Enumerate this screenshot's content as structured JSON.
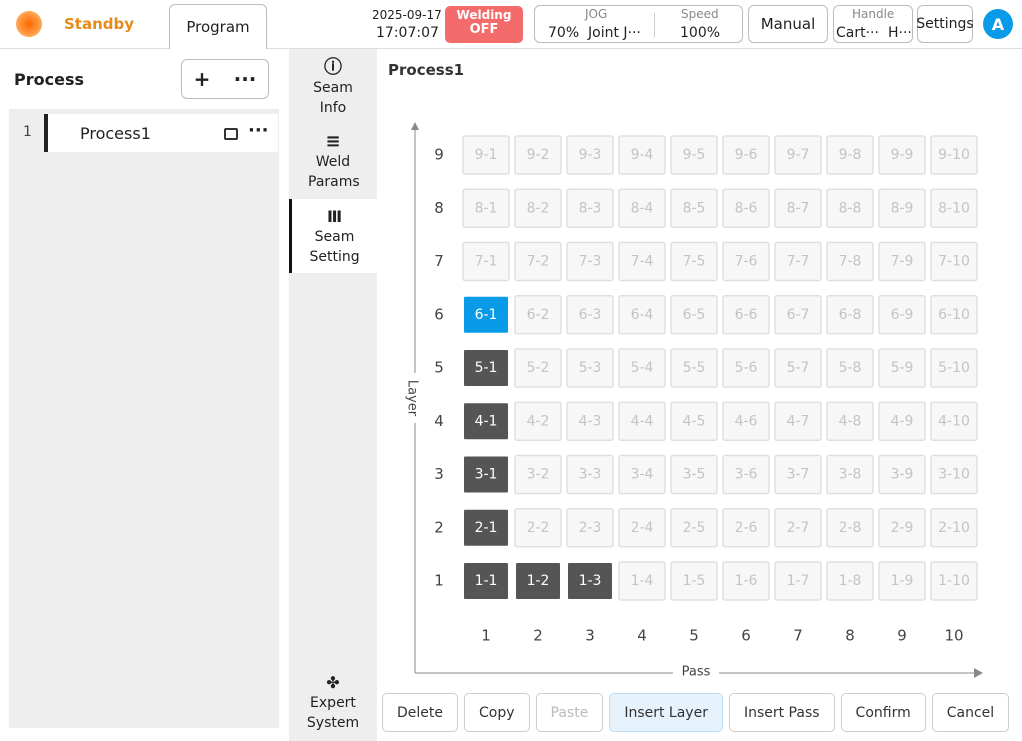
{
  "header": {
    "status": "Standby",
    "tab": "Program",
    "date": "2025-09-17",
    "time": "17:07:07",
    "welding": {
      "label": "Welding",
      "state": "OFF"
    },
    "jog": {
      "label": "JOG",
      "value": "70%",
      "mode": "Joint J···"
    },
    "speed": {
      "label": "Speed",
      "value": "100%"
    },
    "manual": "Manual",
    "handle": {
      "label": "Handle",
      "left": "Cart···",
      "right": "H···"
    },
    "settings": "Settings",
    "avatar": "A"
  },
  "sidebar": {
    "title": "Process",
    "items": [
      {
        "index": "1",
        "name": "Process1"
      }
    ]
  },
  "nav": [
    {
      "label": "Seam Info",
      "active": false
    },
    {
      "label": "Weld Params",
      "active": false
    },
    {
      "label": "Seam Setting",
      "active": true
    },
    {
      "label": "Expert System",
      "active": false
    }
  ],
  "main": {
    "title": "Process1",
    "y_axis": "Layer",
    "x_axis": "Pass",
    "selected": "6-1",
    "rows": [
      {
        "label": "9",
        "filled": 0,
        "cells": [
          "9-1",
          "9-2",
          "9-3",
          "9-4",
          "9-5",
          "9-6",
          "9-7",
          "9-8",
          "9-9",
          "9-10"
        ]
      },
      {
        "label": "8",
        "filled": 0,
        "cells": [
          "8-1",
          "8-2",
          "8-3",
          "8-4",
          "8-5",
          "8-6",
          "8-7",
          "8-8",
          "8-9",
          "8-10"
        ]
      },
      {
        "label": "7",
        "filled": 0,
        "cells": [
          "7-1",
          "7-2",
          "7-3",
          "7-4",
          "7-5",
          "7-6",
          "7-7",
          "7-8",
          "7-9",
          "7-10"
        ]
      },
      {
        "label": "6",
        "filled": 0,
        "cells": [
          "6-1",
          "6-2",
          "6-3",
          "6-4",
          "6-5",
          "6-6",
          "6-7",
          "6-8",
          "6-9",
          "6-10"
        ]
      },
      {
        "label": "5",
        "filled": 1,
        "cells": [
          "5-1",
          "5-2",
          "5-3",
          "5-4",
          "5-5",
          "5-6",
          "5-7",
          "5-8",
          "5-9",
          "5-10"
        ]
      },
      {
        "label": "4",
        "filled": 1,
        "cells": [
          "4-1",
          "4-2",
          "4-3",
          "4-4",
          "4-5",
          "4-6",
          "4-7",
          "4-8",
          "4-9",
          "4-10"
        ]
      },
      {
        "label": "3",
        "filled": 1,
        "cells": [
          "3-1",
          "3-2",
          "3-3",
          "3-4",
          "3-5",
          "3-6",
          "3-7",
          "3-8",
          "3-9",
          "3-10"
        ]
      },
      {
        "label": "2",
        "filled": 1,
        "cells": [
          "2-1",
          "2-2",
          "2-3",
          "2-4",
          "2-5",
          "2-6",
          "2-7",
          "2-8",
          "2-9",
          "2-10"
        ]
      },
      {
        "label": "1",
        "filled": 3,
        "cells": [
          "1-1",
          "1-2",
          "1-3",
          "1-4",
          "1-5",
          "1-6",
          "1-7",
          "1-8",
          "1-9",
          "1-10"
        ]
      }
    ],
    "passes": [
      "1",
      "2",
      "3",
      "4",
      "5",
      "6",
      "7",
      "8",
      "9",
      "10"
    ],
    "buttons": [
      {
        "label": "Delete",
        "state": "normal"
      },
      {
        "label": "Copy",
        "state": "normal"
      },
      {
        "label": "Paste",
        "state": "disabled"
      },
      {
        "label": "Insert Layer",
        "state": "highlight"
      },
      {
        "label": "Insert Pass",
        "state": "normal"
      },
      {
        "label": "Confirm",
        "state": "normal"
      },
      {
        "label": "Cancel",
        "state": "normal"
      }
    ]
  }
}
